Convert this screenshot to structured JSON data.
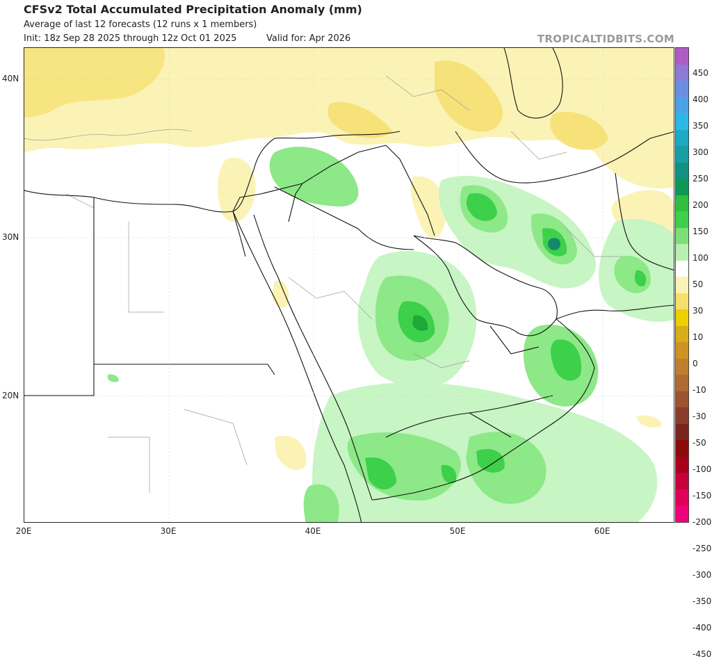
{
  "header": {
    "title": "CFSv2 Total Accumulated Precipitation Anomaly (mm)",
    "subtitle": "Average of last 12 forecasts (12 runs x 1 members)",
    "init": "Init: 18z Sep 28 2025 through 12z Oct 01 2025",
    "valid": "Valid for: Apr 2026",
    "brand": "TROPICALTIDBITS.COM"
  },
  "map": {
    "region": "Middle East / Arabian Peninsula",
    "lon_range": [
      20,
      65
    ],
    "lat_range": [
      12,
      42
    ],
    "x_ticks": [
      "20E",
      "30E",
      "40E",
      "50E",
      "60E"
    ],
    "y_ticks": [
      "40N",
      "30N",
      "20N"
    ],
    "colors": {
      "land": "#ffffff",
      "border": "#111111",
      "admin": "#9a9a9a",
      "wet_light": "#c7f5c4",
      "wet_mid": "#8de887",
      "wet_strong": "#3dd04a",
      "wet_max": "#1fa837",
      "wet_peak": "#138a6a",
      "dry_light": "#fbf3b5",
      "dry_mid": "#f6e279"
    }
  },
  "colorbar": {
    "label_values": [
      "450",
      "400",
      "350",
      "300",
      "250",
      "200",
      "150",
      "100",
      "50",
      "30",
      "10",
      "0",
      "-10",
      "-30",
      "-50",
      "-100",
      "-150",
      "-200",
      "-250",
      "-300",
      "-350",
      "-400",
      "-450"
    ],
    "colors": [
      "#b05cc4",
      "#8c7ad6",
      "#6b8fe0",
      "#4aa3e8",
      "#2cb8e6",
      "#1ea9c5",
      "#16a0a3",
      "#129083",
      "#0e9858",
      "#2fbf3d",
      "#3dd04a",
      "#7ddf78",
      "#b8f0b2",
      "#ffffff",
      "#fbf3b5",
      "#f4e06b",
      "#edd000",
      "#d9ae19",
      "#cc9425",
      "#c07f2e",
      "#b06a32",
      "#9e5330",
      "#8a3c2a",
      "#7a2420",
      "#8a0a0a",
      "#a8001c",
      "#c8003a",
      "#e0005a",
      "#f0007a"
    ]
  }
}
